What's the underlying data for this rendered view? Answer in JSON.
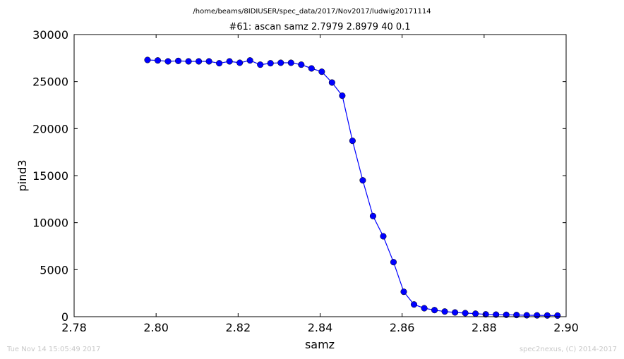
{
  "chart_data": {
    "type": "line",
    "supertitle": "/home/beams/8IDIUSER/spec_data/2017/Nov2017/ludwig20171114",
    "title": "#61: ascan  samz 2.7979 2.8979  40 0.1",
    "xlabel": "samz",
    "ylabel": "pind3",
    "xlim": [
      2.78,
      2.9
    ],
    "ylim": [
      0,
      30000
    ],
    "xticks": [
      "2.78",
      "2.80",
      "2.82",
      "2.84",
      "2.86",
      "2.88",
      "2.90"
    ],
    "yticks": [
      "0",
      "5000",
      "10000",
      "15000",
      "20000",
      "25000",
      "30000"
    ],
    "grid": false,
    "legend": "none",
    "series": [
      {
        "color": "#0000ff",
        "marker": "circle",
        "x": [
          2.7979,
          2.8004,
          2.8029,
          2.8054,
          2.8079,
          2.8104,
          2.8129,
          2.8154,
          2.8179,
          2.8204,
          2.8229,
          2.8254,
          2.8279,
          2.8304,
          2.8329,
          2.8354,
          2.8379,
          2.8404,
          2.8429,
          2.8454,
          2.8479,
          2.8504,
          2.8529,
          2.8554,
          2.8579,
          2.8604,
          2.8629,
          2.8654,
          2.8679,
          2.8704,
          2.8729,
          2.8754,
          2.8779,
          2.8804,
          2.8829,
          2.8854,
          2.8879,
          2.8904,
          2.8929,
          2.8954,
          2.8979
        ],
        "y": [
          27300,
          27250,
          27150,
          27200,
          27150,
          27150,
          27150,
          26950,
          27150,
          27000,
          27250,
          26800,
          26950,
          27000,
          27000,
          26800,
          26400,
          26050,
          24900,
          23500,
          18700,
          14500,
          10700,
          8550,
          5800,
          2650,
          1300,
          900,
          700,
          550,
          450,
          380,
          320,
          250,
          220,
          200,
          180,
          150,
          140,
          130,
          120
        ]
      }
    ]
  },
  "footer": {
    "timestamp": "Tue Nov 14 15:05:49 2017",
    "credit": "spec2nexus, (C) 2014-2017"
  }
}
